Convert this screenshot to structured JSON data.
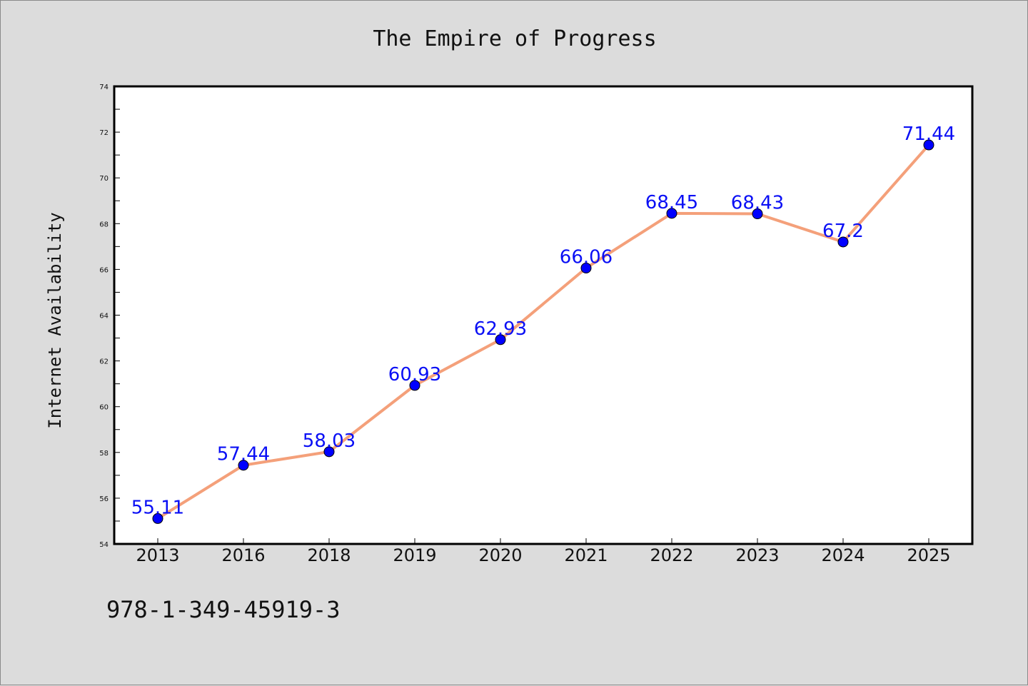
{
  "chart_data": {
    "type": "line",
    "title": "The Empire of Progress",
    "xlabel": "",
    "ylabel": "Internet Availability",
    "categories": [
      "2013",
      "2016",
      "2018",
      "2019",
      "2020",
      "2021",
      "2022",
      "2023",
      "2024",
      "2025"
    ],
    "series": [
      {
        "values": [
          55.11,
          57.44,
          58.03,
          60.93,
          62.93,
          66.06,
          68.45,
          68.43,
          67.2,
          71.44
        ]
      }
    ],
    "data_labels": [
      "55.11",
      "57.44",
      "58.03",
      "60.93",
      "62.93",
      "66.06",
      "68.45",
      "68.43",
      "67.2",
      "71.44"
    ],
    "ylim": [
      54,
      74
    ],
    "yticks": [
      54,
      56,
      58,
      60,
      62,
      64,
      66,
      68,
      70,
      72,
      74
    ],
    "grid": false,
    "line_color": "#f4a07a",
    "marker_color": "#0000ff",
    "label_color": "#0a0ff5"
  },
  "footer_text": "978-1-349-45919-3"
}
